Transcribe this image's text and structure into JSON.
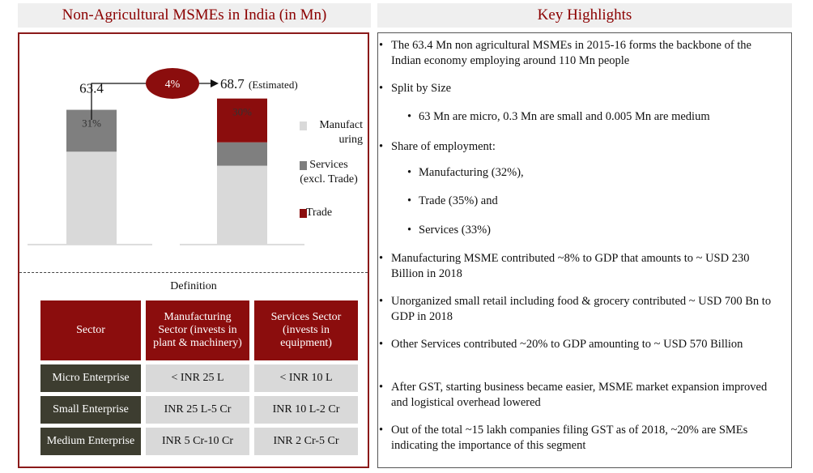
{
  "left_header": "Non-Agricultural MSMEs in India (in Mn)",
  "right_header": "Key Highlights",
  "chart_data": {
    "type": "bar",
    "stacked": true,
    "categories": [
      "",
      ""
    ],
    "totals_labels": [
      "63.4",
      "68.7"
    ],
    "total_annotation": "(Estimated)",
    "growth_label": "4%",
    "series": [
      {
        "name": "Manufact uring",
        "values": [
          43.7,
          37.1
        ],
        "color": "#d9d9d9"
      },
      {
        "name": "Services (excl. Trade)",
        "values": [
          19.7,
          11.0
        ],
        "color": "#7f7f7f"
      },
      {
        "name": "Trade",
        "values": [
          0,
          20.6
        ],
        "color": "#8b0d0d"
      }
    ],
    "data_labels": [
      {
        "category": 0,
        "series": 1,
        "text": "31%"
      },
      {
        "category": 1,
        "series": 2,
        "text": "30%"
      }
    ],
    "legend": [
      {
        "lines": [
          "Manufact",
          "uring"
        ],
        "color": "#d9d9d9"
      },
      {
        "lines": [
          "Services",
          "(excl. Trade)"
        ],
        "color": "#7f7f7f"
      },
      {
        "lines": [
          "Trade"
        ],
        "color": "#8b0d0d"
      }
    ],
    "legend_position": "right",
    "grid": false
  },
  "definition": {
    "title": "Definition",
    "headers": [
      "Sector",
      "Manufacturing Sector (invests in plant & machinery)",
      "Services Sector (invests in equipment)"
    ],
    "rows": [
      {
        "label": "Micro Enterprise",
        "mfg": "< INR 25 L",
        "svc": "< INR 10 L"
      },
      {
        "label": "Small Enterprise",
        "mfg": "INR 25 L-5 Cr",
        "svc": "INR 10 L-2 Cr"
      },
      {
        "label": "Medium Enterprise",
        "mfg": "INR 5 Cr-10 Cr",
        "svc": "INR 2 Cr-5 Cr"
      }
    ]
  },
  "highlights": [
    {
      "text": "The 63.4 Mn non agricultural MSMEs in 2015-16 forms the backbone of the Indian economy employing around 110 Mn people"
    },
    {
      "text": "Split by Size"
    },
    {
      "text": "63 Mn are micro, 0.3 Mn are small and 0.005 Mn are medium",
      "sub": true
    },
    {
      "text": "Share of employment:"
    },
    {
      "text": "Manufacturing (32%),",
      "sub": true
    },
    {
      "text": "Trade (35%) and",
      "sub": true
    },
    {
      "text": "Services (33%)",
      "sub": true
    },
    {
      "text": "Manufacturing MSME contributed ~8% to GDP that amounts to ~ USD 230 Billion in 2018"
    },
    {
      "text": "Unorganized small retail including food & grocery contributed ~ USD 700 Bn to GDP in 2018"
    },
    {
      "text": "Other Services contributed ~20% to GDP amounting to ~ USD 570 Billion"
    },
    {
      "text": "After GST, starting business became easier, MSME market expansion improved and logistical overhead lowered"
    },
    {
      "text": "Out of the total ~15 lakh companies filing GST as of 2018, ~20% are SMEs indicating the importance of this segment"
    }
  ]
}
